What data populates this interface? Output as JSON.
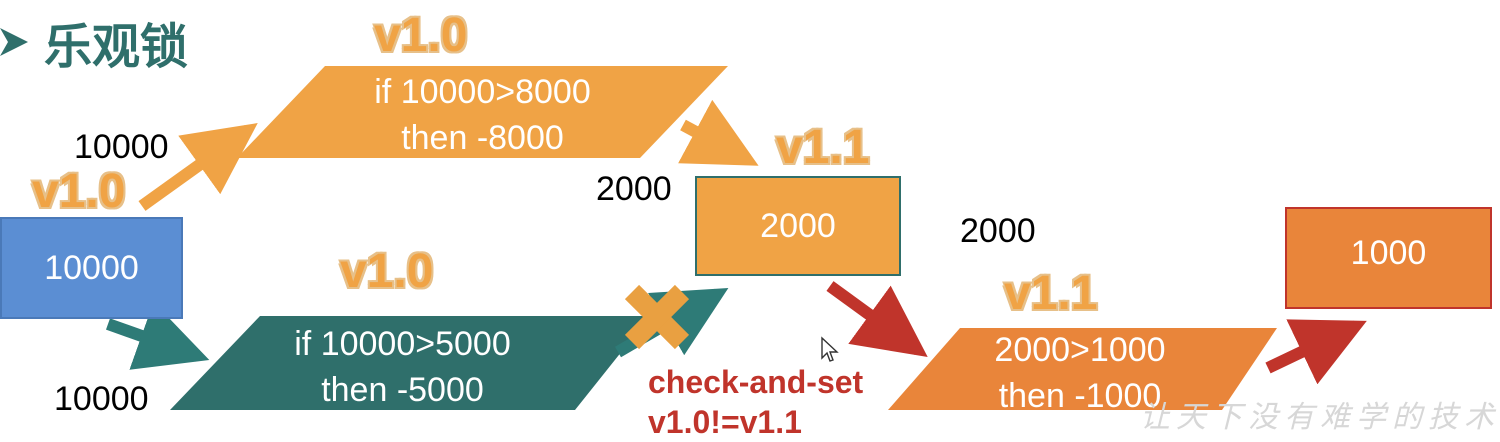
{
  "title": "乐观锁",
  "versions": {
    "v10": "v1.0",
    "v11": "v1.1"
  },
  "values": {
    "start": "10000",
    "read_a": "10000",
    "read_b": "10000",
    "after_a": "2000",
    "read_c": "2000",
    "mid_result": "2000",
    "final_result": "1000"
  },
  "ops": {
    "op_a_line1": "if 10000>8000",
    "op_a_line2": "then -8000",
    "op_b_line1": "if 10000>5000",
    "op_b_line2": "then -5000",
    "op_c_line1": "2000>1000",
    "op_c_line2": "then -1000"
  },
  "check": {
    "line1": "check-and-set",
    "line2": "v1.0!=v1.1"
  },
  "watermark": "让天下没有难学的技术",
  "colors": {
    "blue": "#5b8ed3",
    "orange": "#f0a345",
    "teal": "#2f6f6b",
    "deep_orange": "#e9853a",
    "red": "#c0342b",
    "dark_teal_arrow": "#2e7b77"
  }
}
